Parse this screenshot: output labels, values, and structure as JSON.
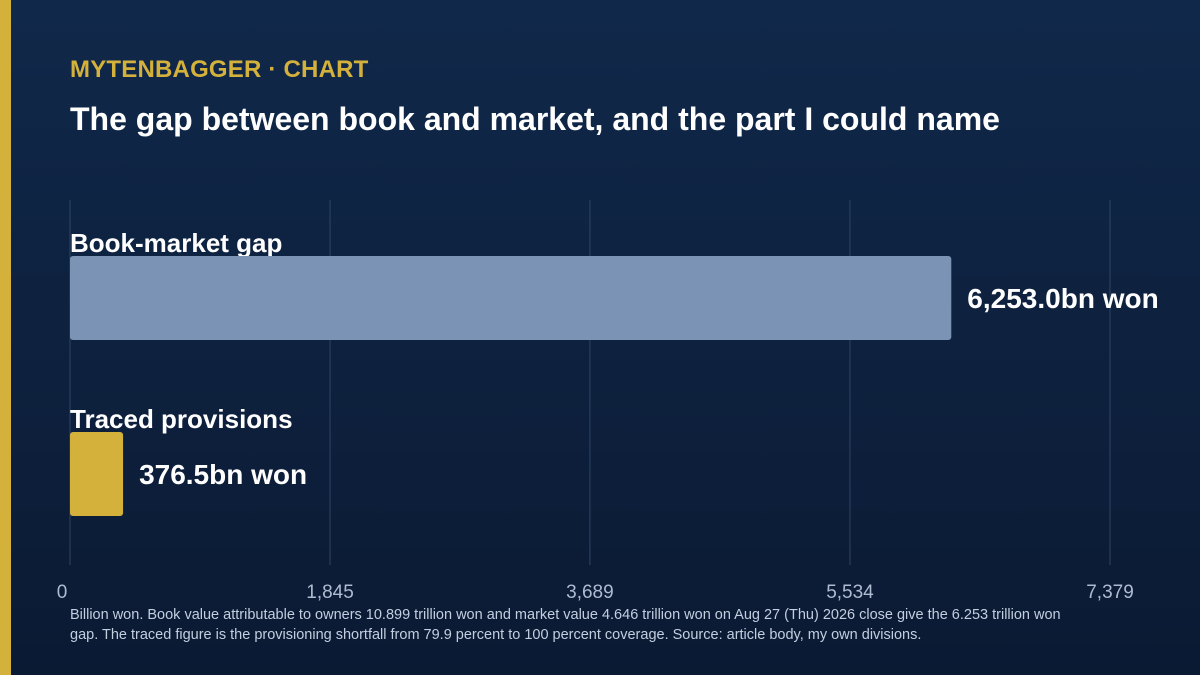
{
  "header": {
    "kicker_brand": "MYTENBAGGER",
    "kicker_separator": "·",
    "kicker_section": "CHART",
    "title": "The gap between book and market, and the part I could name"
  },
  "chart_data": {
    "type": "bar",
    "orientation": "horizontal",
    "categories": [
      "Book-market gap",
      "Traced provisions"
    ],
    "values": [
      6253.0,
      376.5
    ],
    "value_labels": [
      "6,253.0bn won",
      "376.5bn won"
    ],
    "colors": [
      "#7b93b5",
      "#d4b13b"
    ],
    "xlim": [
      0,
      7379
    ],
    "x_ticks": [
      0,
      1845,
      3689,
      5534,
      7379
    ],
    "x_tick_labels": [
      "0",
      "1,845",
      "3,689",
      "5,534",
      "7,379"
    ],
    "grid": true
  },
  "footnote": "Billion won. Book value attributable to owners 10.899 trillion won and market value 4.646 trillion won on Aug 27 (Thu) 2026 close give the 6.253 trillion won gap. The traced figure is the provisioning shortfall from 79.9 percent to 100 percent coverage. Source: article body, my own divisions.",
  "colors": {
    "background_top": "#10284a",
    "background_bottom": "#0b1a33",
    "accent": "#d4b13b",
    "gridline": "#2e4566",
    "tick_text": "#aebbd0"
  }
}
